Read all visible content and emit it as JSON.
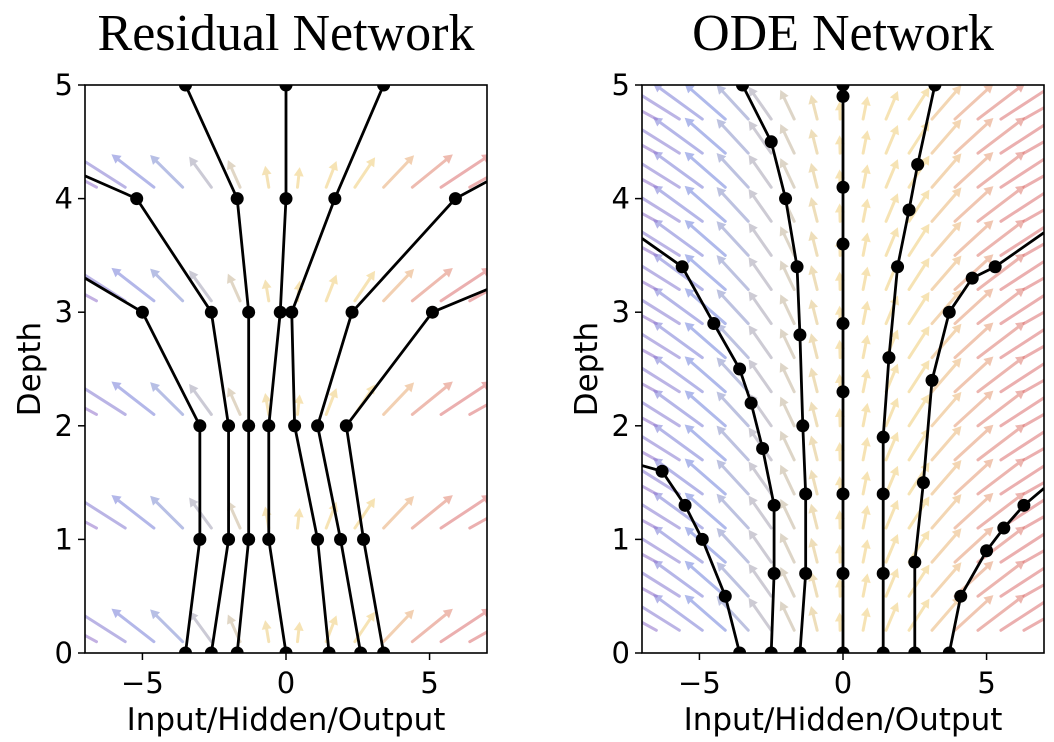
{
  "chart_data": [
    {
      "type": "line",
      "title": "Residual Network",
      "xlabel": "Input/Hidden/Output",
      "ylabel": "Depth",
      "xlim": [
        -7,
        7
      ],
      "ylim": [
        0,
        5
      ],
      "xticks": [
        "−5",
        "0",
        "5"
      ],
      "xtick_values": [
        -5,
        0,
        5
      ],
      "yticks": [
        "0",
        "1",
        "2",
        "3",
        "4",
        "5"
      ],
      "ytick_values": [
        0,
        1,
        2,
        3,
        4,
        5
      ],
      "grid": false,
      "series": [
        {
          "points": [
            [
              -3.5,
              0
            ],
            [
              -3.0,
              1
            ],
            [
              -3.0,
              2
            ],
            [
              -5.0,
              3
            ],
            [
              -7.0,
              3.3
            ]
          ]
        },
        {
          "points": [
            [
              -2.6,
              0
            ],
            [
              -2.0,
              1
            ],
            [
              -2.0,
              2
            ],
            [
              -2.6,
              3
            ],
            [
              -5.2,
              4
            ],
            [
              -7.0,
              4.2
            ]
          ]
        },
        {
          "points": [
            [
              -1.7,
              0
            ],
            [
              -1.3,
              1
            ],
            [
              -1.3,
              2
            ],
            [
              -1.3,
              3
            ],
            [
              -1.7,
              4
            ],
            [
              -3.5,
              5
            ]
          ]
        },
        {
          "points": [
            [
              0,
              0
            ],
            [
              -0.6,
              1
            ],
            [
              -0.6,
              2
            ],
            [
              -0.2,
              3
            ],
            [
              0,
              4
            ],
            [
              0,
              5
            ]
          ]
        },
        {
          "points": [
            [
              1.5,
              0
            ],
            [
              1.1,
              1
            ],
            [
              0.3,
              2
            ],
            [
              0.2,
              3
            ],
            [
              1.7,
              4
            ],
            [
              3.4,
              5
            ]
          ]
        },
        {
          "points": [
            [
              2.6,
              0
            ],
            [
              1.9,
              1
            ],
            [
              1.1,
              2
            ],
            [
              2.3,
              3
            ],
            [
              5.9,
              4
            ],
            [
              7.0,
              4.15
            ]
          ]
        },
        {
          "points": [
            [
              3.4,
              0
            ],
            [
              2.7,
              1
            ],
            [
              2.1,
              2
            ],
            [
              5.1,
              3
            ],
            [
              7.0,
              3.2
            ]
          ]
        }
      ],
      "vector_field": "arrows colored blue/purple (left), yellow (center), red (right)"
    },
    {
      "type": "line",
      "title": "ODE Network",
      "xlabel": "Input/Hidden/Output",
      "ylabel": "Depth",
      "xlim": [
        -7,
        7
      ],
      "ylim": [
        0,
        5
      ],
      "xticks": [
        "−5",
        "0",
        "5"
      ],
      "xtick_values": [
        -5,
        0,
        5
      ],
      "yticks": [
        "0",
        "1",
        "2",
        "3",
        "4",
        "5"
      ],
      "ytick_values": [
        0,
        1,
        2,
        3,
        4,
        5
      ],
      "grid": false,
      "series": [
        {
          "points": [
            [
              -3.6,
              0
            ],
            [
              -4.1,
              0.5
            ],
            [
              -4.9,
              1.0
            ],
            [
              -5.5,
              1.3
            ],
            [
              -6.3,
              1.6
            ],
            [
              -7.0,
              1.65
            ]
          ]
        },
        {
          "points": [
            [
              -2.5,
              0
            ],
            [
              -2.4,
              0.7
            ],
            [
              -2.4,
              1.3
            ],
            [
              -2.8,
              1.8
            ],
            [
              -3.2,
              2.2
            ],
            [
              -3.6,
              2.5
            ],
            [
              -4.5,
              2.9
            ],
            [
              -5.6,
              3.4
            ],
            [
              -7.0,
              3.65
            ]
          ]
        },
        {
          "points": [
            [
              -1.5,
              0
            ],
            [
              -1.3,
              0.7
            ],
            [
              -1.3,
              1.4
            ],
            [
              -1.4,
              2.0
            ],
            [
              -1.5,
              2.8
            ],
            [
              -1.6,
              3.4
            ],
            [
              -2.0,
              4.0
            ],
            [
              -2.5,
              4.5
            ],
            [
              -3.5,
              5.0
            ]
          ]
        },
        {
          "points": [
            [
              0,
              0
            ],
            [
              0,
              0.7
            ],
            [
              0,
              1.4
            ],
            [
              0,
              2.3
            ],
            [
              0,
              2.9
            ],
            [
              0,
              3.6
            ],
            [
              0,
              4.1
            ],
            [
              0,
              4.9
            ],
            [
              0,
              5
            ]
          ]
        },
        {
          "points": [
            [
              1.4,
              0
            ],
            [
              1.4,
              0.7
            ],
            [
              1.4,
              1.4
            ],
            [
              1.4,
              1.9
            ],
            [
              1.6,
              2.6
            ],
            [
              1.9,
              3.4
            ],
            [
              2.3,
              3.9
            ],
            [
              2.6,
              4.3
            ],
            [
              3.2,
              5.0
            ]
          ]
        },
        {
          "points": [
            [
              2.5,
              0
            ],
            [
              2.5,
              0.8
            ],
            [
              2.8,
              1.5
            ],
            [
              3.1,
              2.4
            ],
            [
              3.7,
              3.0
            ],
            [
              4.5,
              3.3
            ],
            [
              5.3,
              3.4
            ],
            [
              7.0,
              3.7
            ]
          ]
        },
        {
          "points": [
            [
              3.7,
              0
            ],
            [
              4.1,
              0.5
            ],
            [
              5.0,
              0.9
            ],
            [
              5.6,
              1.1
            ],
            [
              6.3,
              1.3
            ],
            [
              7.0,
              1.45
            ]
          ]
        }
      ],
      "vector_field": "arrows colored blue/purple (left), yellow (center), red (right)"
    }
  ]
}
